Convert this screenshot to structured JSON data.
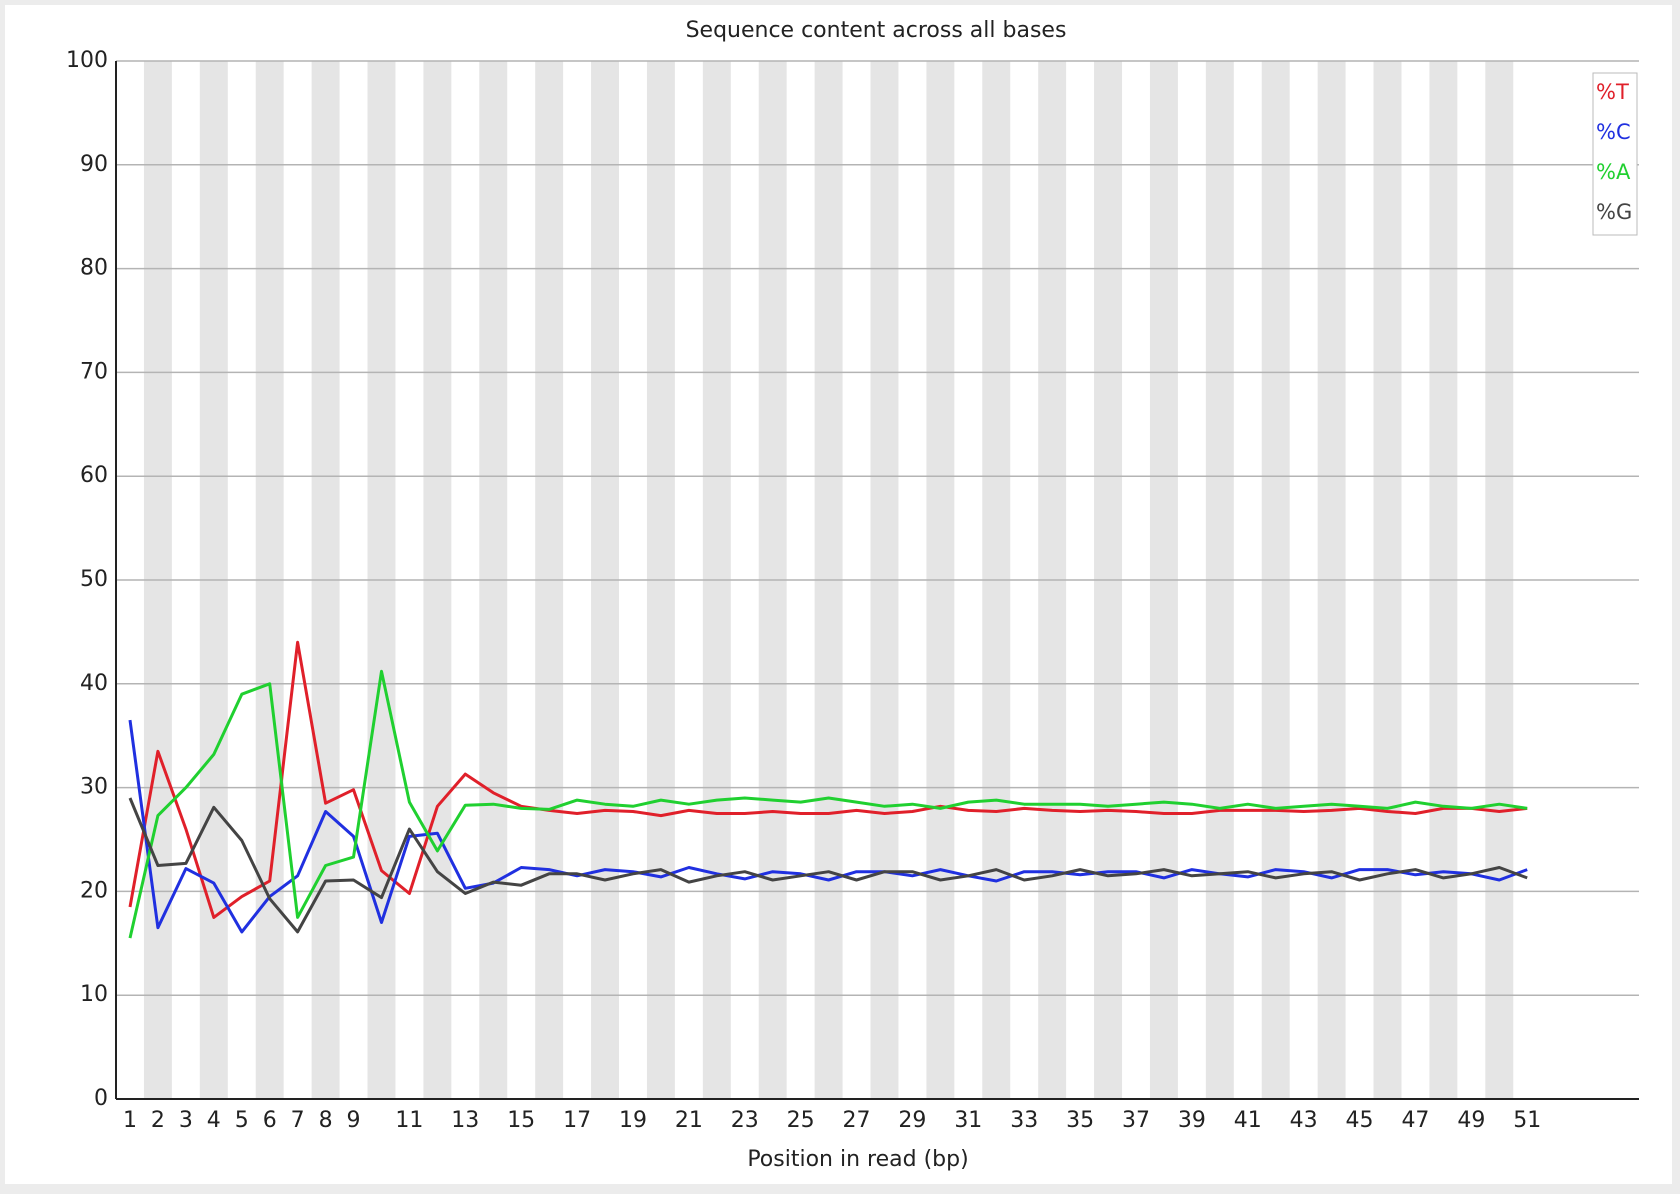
{
  "chart_data": {
    "type": "line",
    "title": "Sequence content across all bases",
    "x_label": "Position in read (bp)",
    "categories": [
      "1",
      "2",
      "3",
      "4",
      "5",
      "6",
      "7",
      "8",
      "9",
      null,
      "11",
      null,
      "13",
      null,
      "15",
      null,
      "17",
      null,
      "19",
      null,
      "21",
      null,
      "23",
      null,
      "25",
      null,
      "27",
      null,
      "29",
      null,
      "31",
      null,
      "33",
      null,
      "35",
      null,
      "37",
      null,
      "39",
      null,
      "41",
      null,
      "43",
      null,
      "45",
      null,
      "47",
      null,
      "49",
      null,
      "51"
    ],
    "series": [
      {
        "name": "%T",
        "color": "#e0202a",
        "values": [
          18.5,
          33.5,
          26,
          17.5,
          19.5,
          21,
          44,
          28.5,
          29.8,
          22,
          19.8,
          28.2,
          31.3,
          29.5,
          28.2,
          27.8,
          27.5,
          27.8,
          27.7,
          27.3,
          27.8,
          27.5,
          27.5,
          27.7,
          27.5,
          27.5,
          27.8,
          27.5,
          27.7,
          28.2,
          27.8,
          27.7,
          28,
          27.8,
          27.7,
          27.8,
          27.7,
          27.5,
          27.5,
          27.8,
          27.8,
          27.8,
          27.7,
          27.8,
          28,
          27.7,
          27.5,
          28,
          28,
          27.7,
          28
        ]
      },
      {
        "name": "%C",
        "color": "#2030e0",
        "values": [
          36.5,
          16.5,
          22.2,
          20.8,
          16.1,
          19.5,
          21.5,
          27.7,
          25.3,
          17,
          25.3,
          25.6,
          20.3,
          20.8,
          22.3,
          22.1,
          21.5,
          22.1,
          21.9,
          21.4,
          22.3,
          21.7,
          21.2,
          21.9,
          21.7,
          21.1,
          21.9,
          21.9,
          21.5,
          22.1,
          21.5,
          21,
          21.9,
          21.9,
          21.6,
          21.9,
          21.9,
          21.3,
          22.1,
          21.7,
          21.4,
          22.1,
          21.9,
          21.3,
          22.1,
          22.1,
          21.6,
          21.9,
          21.7,
          21.1,
          22.1
        ]
      },
      {
        "name": "%A",
        "color": "#20d030",
        "values": [
          15.5,
          27.3,
          30,
          33.2,
          39,
          40,
          17.5,
          22.5,
          23.3,
          41.2,
          28.6,
          23.9,
          28.3,
          28.4,
          28,
          27.9,
          28.8,
          28.4,
          28.2,
          28.8,
          28.4,
          28.8,
          29,
          28.8,
          28.6,
          29,
          28.6,
          28.2,
          28.4,
          28,
          28.6,
          28.8,
          28.4,
          28.4,
          28.4,
          28.2,
          28.4,
          28.6,
          28.4,
          28,
          28.4,
          28,
          28.2,
          28.4,
          28.2,
          28,
          28.6,
          28.2,
          28,
          28.4,
          28
        ]
      },
      {
        "name": "%G",
        "color": "#444444",
        "values": [
          29,
          22.5,
          22.7,
          28.1,
          24.9,
          19.3,
          16.1,
          21,
          21.1,
          19.4,
          26,
          21.9,
          19.8,
          20.9,
          20.6,
          21.7,
          21.7,
          21.1,
          21.7,
          22.1,
          20.9,
          21.5,
          21.9,
          21.1,
          21.5,
          21.9,
          21.1,
          21.9,
          21.9,
          21.1,
          21.5,
          22.1,
          21.1,
          21.5,
          22.1,
          21.5,
          21.7,
          22.1,
          21.5,
          21.7,
          21.9,
          21.3,
          21.7,
          21.9,
          21.1,
          21.7,
          22.1,
          21.3,
          21.7,
          22.3,
          21.3
        ]
      }
    ],
    "ylim": [
      0,
      100
    ],
    "yticks": [
      0,
      10,
      20,
      30,
      40,
      50,
      60,
      70,
      80,
      90,
      100
    ],
    "grid": true,
    "legend": "top-right"
  }
}
